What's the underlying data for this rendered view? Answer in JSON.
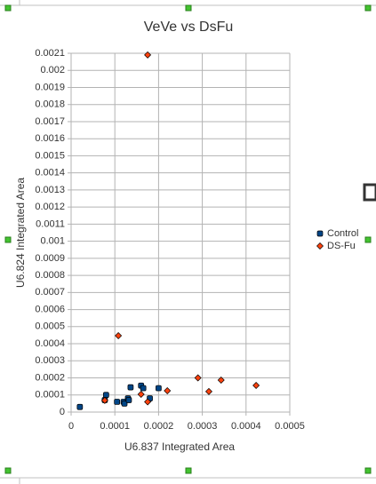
{
  "chart_data": {
    "type": "scatter",
    "title": "VeVe vs DsFu",
    "x_label": "U6.837 Integrated Area",
    "y_label": "U6.824 Integrated Area",
    "xlim": [
      0,
      0.0005
    ],
    "xticks": [
      0,
      0.0001,
      0.0002,
      0.0003,
      0.0004,
      0.0005
    ],
    "ylim": [
      0,
      0.0021
    ],
    "yticks": [
      0,
      0.0001,
      0.0002,
      0.0003,
      0.0004,
      0.0005,
      0.0006,
      0.0007,
      0.0008,
      0.0009,
      0.001,
      0.0011,
      0.0012,
      0.0013,
      0.0014,
      0.0015,
      0.0016,
      0.0017,
      0.0018,
      0.0019,
      0.002,
      0.0021
    ],
    "grid": true,
    "legend": "right",
    "series": [
      {
        "name": "Control",
        "color": "#004586",
        "marker": "square",
        "x": [
          2e-05,
          8e-05,
          7.7e-05,
          0.000105,
          0.00012,
          0.000122,
          0.00013,
          0.000136,
          0.00016,
          0.000165,
          0.00018,
          0.0002,
          0.000132
        ],
        "values": [
          3e-05,
          0.0001,
          7e-05,
          6e-05,
          6e-05,
          5e-05,
          8e-05,
          0.000145,
          0.000155,
          0.00014,
          8e-05,
          0.00014,
          7e-05
        ]
      },
      {
        "name": "DS-Fu",
        "color": "#ff420e",
        "marker": "diamond",
        "x": [
          0.000175,
          0.000108,
          7.7e-05,
          0.00016,
          0.000175,
          0.00022,
          0.00029,
          0.000315,
          0.000343,
          0.000423
        ],
        "values": [
          0.00209,
          0.000447,
          6.8e-05,
          0.000104,
          6e-05,
          0.000125,
          0.0002,
          0.00012,
          0.000187,
          0.000156
        ]
      }
    ]
  }
}
